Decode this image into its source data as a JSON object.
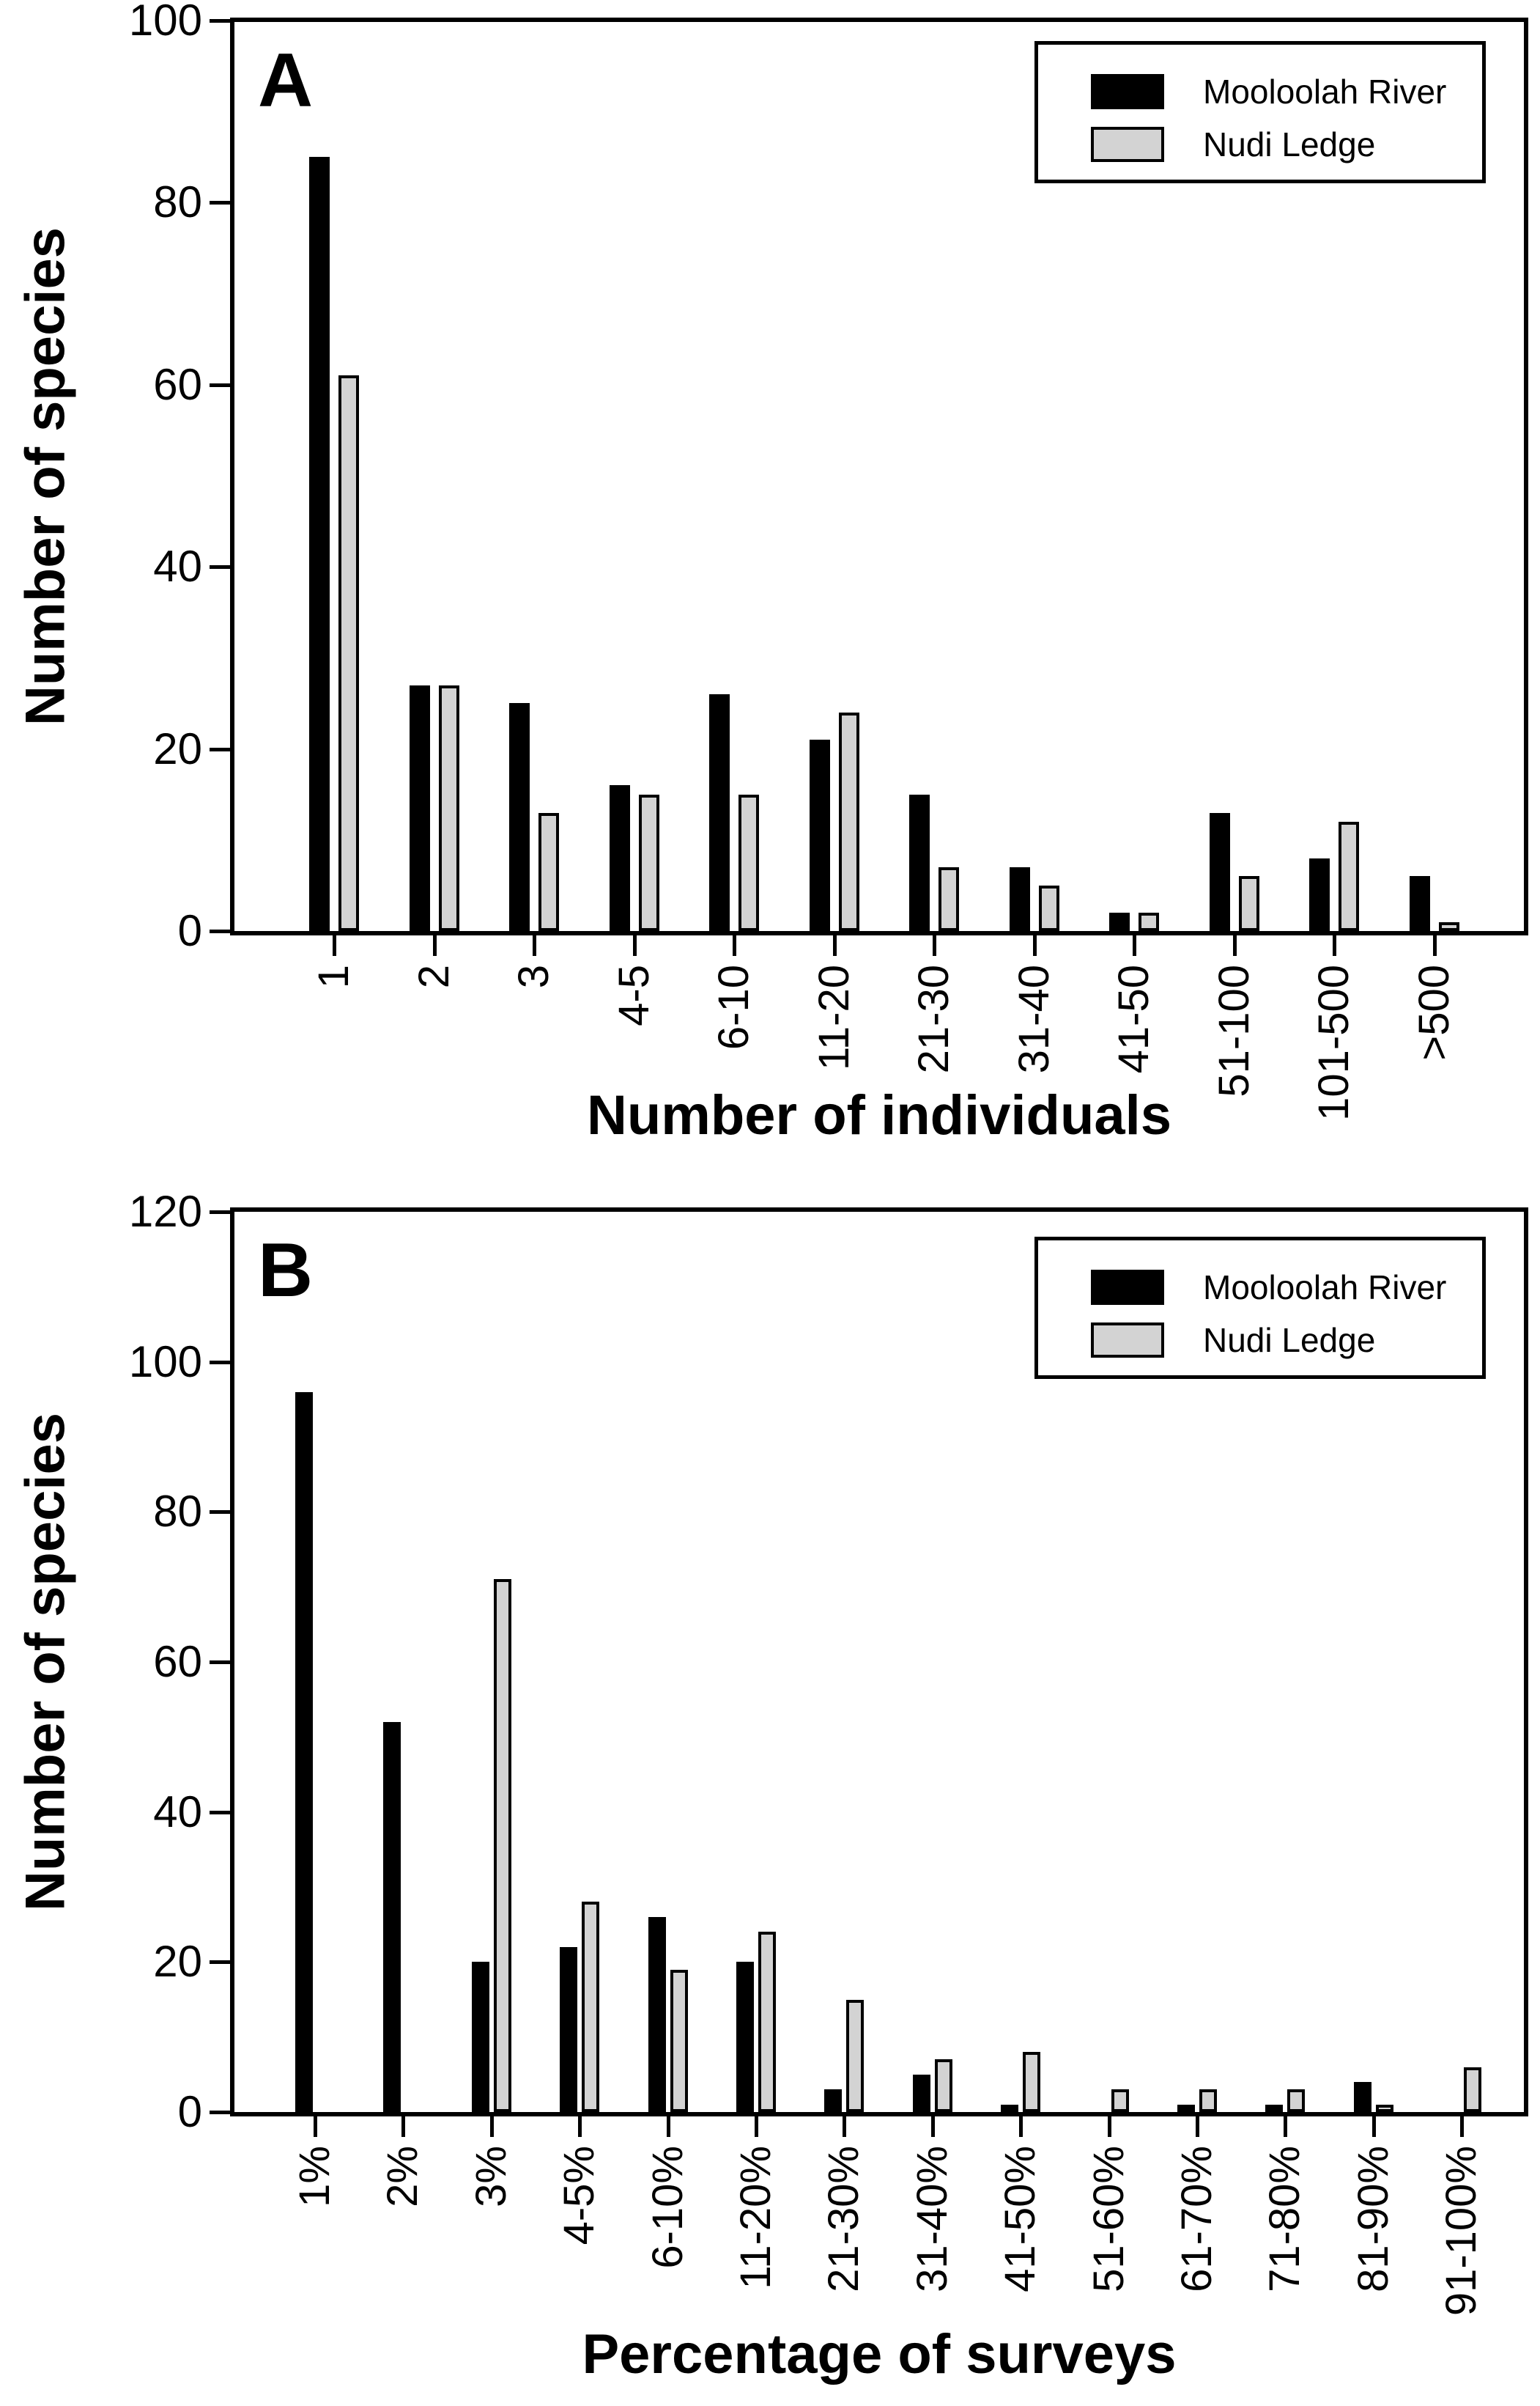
{
  "figure_title": "",
  "chart_data": [
    {
      "type": "bar",
      "panel_label": "A",
      "categories": [
        "1",
        "2",
        "3",
        "4-5",
        "6-10",
        "11-20",
        "21-30",
        "31-40",
        "41-50",
        "51-100",
        "101-500",
        ">500"
      ],
      "series": [
        {
          "name": "Mooloolah River",
          "color": "#000000",
          "values": [
            85,
            27,
            25,
            16,
            26,
            21,
            15,
            7,
            2,
            13,
            8,
            6
          ]
        },
        {
          "name": "Nudi Ledge",
          "color": "#d3d3d3",
          "values": [
            61,
            27,
            13,
            15,
            15,
            24,
            7,
            5,
            2,
            6,
            12,
            1
          ]
        }
      ],
      "xlabel": "Number of individuals",
      "ylabel": "Number of species",
      "ylim": [
        0,
        100
      ],
      "yticks": [
        0,
        20,
        40,
        60,
        80,
        100
      ],
      "grid": false,
      "legend_position": "top-right"
    },
    {
      "type": "bar",
      "panel_label": "B",
      "categories": [
        "1%",
        "2%",
        "3%",
        "4-5%",
        "6-10%",
        "11-20%",
        "21-30%",
        "31-40%",
        "41-50%",
        "51-60%",
        "61-70%",
        "71-80%",
        "81-90%",
        "91-100%"
      ],
      "series": [
        {
          "name": "Mooloolah River",
          "color": "#000000",
          "values": [
            96,
            52,
            20,
            22,
            26,
            20,
            3,
            5,
            1,
            0,
            1,
            1,
            4,
            0
          ]
        },
        {
          "name": "Nudi Ledge",
          "color": "#d3d3d3",
          "values": [
            0,
            0,
            71,
            28,
            19,
            24,
            15,
            7,
            8,
            3,
            3,
            3,
            1,
            6
          ]
        }
      ],
      "xlabel": "Percentage of surveys",
      "ylabel": "Number of species",
      "ylim": [
        0,
        120
      ],
      "yticks": [
        0,
        20,
        40,
        60,
        80,
        100,
        120
      ],
      "grid": false,
      "legend_position": "top-right"
    }
  ]
}
